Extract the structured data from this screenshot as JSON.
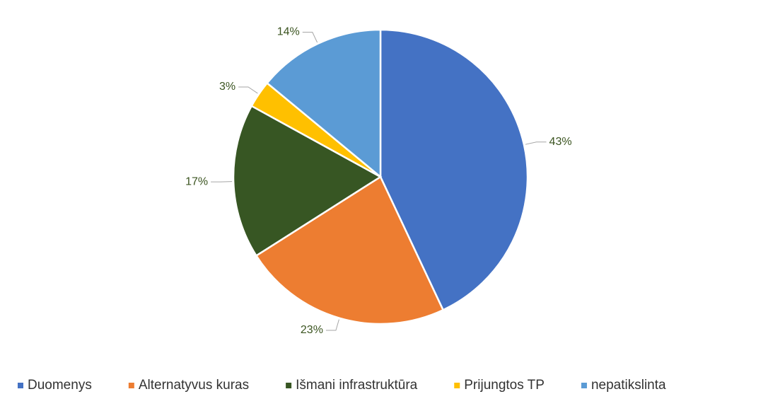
{
  "chart_data": {
    "type": "pie",
    "categories": [
      "Duomenys",
      "Alternatyvus kuras",
      "Išmani infrastruktūra",
      "Prijungtos TP",
      "nepatikslinta"
    ],
    "values": [
      43,
      23,
      17,
      3,
      14
    ],
    "value_labels": [
      "43%",
      "23%",
      "17%",
      "3%",
      "14%"
    ],
    "colors": [
      "#4472c4",
      "#ed7d31",
      "#375623",
      "#ffc000",
      "#5b9bd5"
    ],
    "legend": "bottom"
  }
}
